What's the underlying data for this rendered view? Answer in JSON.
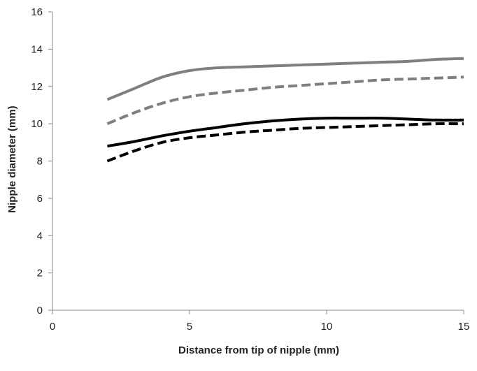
{
  "chart_data": {
    "type": "line",
    "title": "",
    "xlabel": "Distance from tip of nipple (mm)",
    "ylabel": "Nipple diameter (mm)",
    "xlim": [
      0,
      15
    ],
    "ylim": [
      0,
      16
    ],
    "xticks": [
      0,
      5,
      10,
      15
    ],
    "yticks": [
      0,
      2,
      4,
      6,
      8,
      10,
      12,
      14,
      16
    ],
    "grid": false,
    "legend": "none",
    "series": [
      {
        "color": "#7f7f7f",
        "dash": "solid",
        "x": [
          2,
          3,
          4,
          5,
          6,
          7,
          8,
          9,
          10,
          11,
          12,
          13,
          14,
          15
        ],
        "y": [
          11.3,
          11.9,
          12.5,
          12.85,
          13.0,
          13.05,
          13.1,
          13.15,
          13.2,
          13.25,
          13.3,
          13.35,
          13.45,
          13.5
        ]
      },
      {
        "color": "#7f7f7f",
        "dash": "dashed",
        "x": [
          2,
          3,
          4,
          5,
          6,
          7,
          8,
          9,
          10,
          11,
          12,
          13,
          14,
          15
        ],
        "y": [
          10.0,
          10.6,
          11.1,
          11.45,
          11.65,
          11.8,
          11.95,
          12.05,
          12.15,
          12.25,
          12.35,
          12.4,
          12.45,
          12.5
        ]
      },
      {
        "color": "#000000",
        "dash": "solid",
        "x": [
          2,
          3,
          4,
          5,
          6,
          7,
          8,
          9,
          10,
          11,
          12,
          13,
          14,
          15
        ],
        "y": [
          8.8,
          9.05,
          9.35,
          9.6,
          9.8,
          10.0,
          10.15,
          10.25,
          10.3,
          10.3,
          10.3,
          10.25,
          10.2,
          10.2
        ]
      },
      {
        "color": "#000000",
        "dash": "dashed",
        "x": [
          2,
          3,
          4,
          5,
          6,
          7,
          8,
          9,
          10,
          11,
          12,
          13,
          14,
          15
        ],
        "y": [
          8.0,
          8.55,
          9.0,
          9.25,
          9.4,
          9.55,
          9.65,
          9.75,
          9.8,
          9.85,
          9.9,
          9.95,
          10.0,
          10.0
        ]
      }
    ]
  }
}
